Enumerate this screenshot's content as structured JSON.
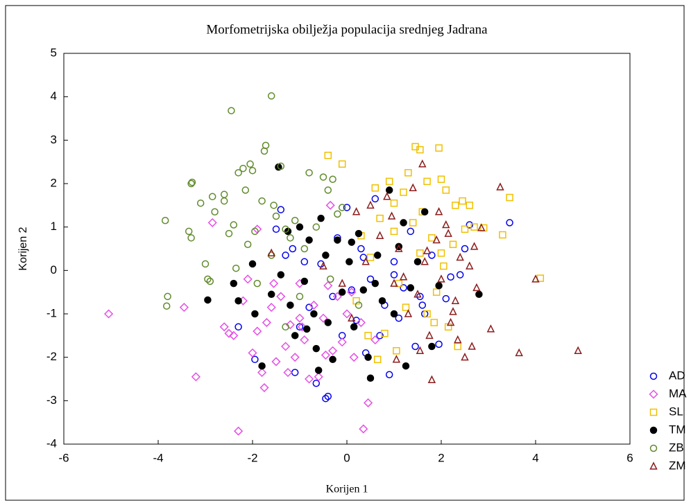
{
  "chart_data": {
    "type": "scatter",
    "title": "Morfometrijska obilježja populacija srednjeg Jadrana",
    "x_label": "Korijen 1",
    "y_label": "Korijen 2",
    "xlim": [
      -6,
      6
    ],
    "xticks": [
      -6,
      -4,
      -2,
      0,
      2,
      4,
      6
    ],
    "ylim": [
      -4,
      5
    ],
    "yticks": [
      -4,
      -3,
      -2,
      -1,
      0,
      1,
      2,
      3,
      4,
      5
    ],
    "grid": false,
    "legend": "right",
    "series": [
      {
        "name": "AD",
        "color": "#0000ee",
        "marker": "circle",
        "x": [
          -2.3,
          -1.95,
          -1.5,
          -1.4,
          -1.3,
          -1.1,
          -1.0,
          -0.9,
          -0.8,
          -0.65,
          -0.55,
          -0.45,
          -0.4,
          -0.3,
          -0.2,
          -0.1,
          0.0,
          0.1,
          0.2,
          0.35,
          0.4,
          0.5,
          0.6,
          0.7,
          0.8,
          0.9,
          1.0,
          1.1,
          1.2,
          1.35,
          1.45,
          1.55,
          1.65,
          1.8,
          1.95,
          2.1,
          2.2,
          2.4,
          2.5,
          2.6,
          3.45,
          -1.15,
          0.3,
          1.0,
          1.6
        ],
        "values": [
          -1.3,
          -2.05,
          0.95,
          1.4,
          0.35,
          -2.35,
          -1.3,
          0.2,
          -0.85,
          -2.6,
          0.15,
          -2.95,
          -2.9,
          -0.6,
          0.75,
          -1.5,
          1.45,
          -0.45,
          -1.15,
          0.3,
          -1.9,
          -0.2,
          1.65,
          -1.5,
          -0.8,
          -2.4,
          0.2,
          -1.1,
          -0.4,
          0.9,
          -1.75,
          -0.6,
          -1.0,
          0.35,
          -1.7,
          -0.65,
          -0.15,
          -0.1,
          0.5,
          1.05,
          1.1,
          0.5,
          0.5,
          -0.1,
          -0.8
        ]
      },
      {
        "name": "MA",
        "color": "#e64ee6",
        "marker": "diamond",
        "x": [
          -5.05,
          -3.45,
          -3.2,
          -2.85,
          -2.3,
          -2.5,
          -2.4,
          -2.0,
          -1.9,
          -1.8,
          -1.7,
          -1.6,
          -1.5,
          -1.4,
          -1.3,
          -1.2,
          -1.1,
          -1.0,
          -0.9,
          -0.8,
          -0.7,
          -0.6,
          -0.5,
          -0.4,
          -0.3,
          -0.2,
          -0.1,
          0.0,
          0.15,
          0.3,
          0.35,
          0.45,
          0.6,
          -2.1,
          -1.9,
          -1.55,
          -1.25,
          -0.95,
          -0.45,
          -1.75,
          -2.6,
          -1.0,
          -2.2,
          0.1,
          -0.35
        ],
        "values": [
          -1.0,
          -0.85,
          -2.45,
          1.1,
          -3.7,
          -1.45,
          -1.5,
          -1.9,
          -1.4,
          -2.35,
          -1.2,
          -0.85,
          -2.1,
          -0.6,
          -1.75,
          -1.25,
          -2.0,
          -0.3,
          -1.6,
          -2.5,
          -0.8,
          -2.45,
          -1.1,
          -0.35,
          -1.85,
          -0.6,
          -1.65,
          -1.0,
          -2.0,
          -1.2,
          -3.65,
          -3.05,
          -1.6,
          -0.2,
          0.95,
          -0.3,
          -2.35,
          -1.3,
          -1.95,
          -2.7,
          -1.3,
          -1.1,
          -0.7,
          -0.5,
          1.5
        ]
      },
      {
        "name": "SL",
        "color": "#f0c000",
        "marker": "square",
        "x": [
          -0.4,
          -0.1,
          0.6,
          0.9,
          1.0,
          1.2,
          1.3,
          1.45,
          1.55,
          1.7,
          1.95,
          2.0,
          2.1,
          2.3,
          2.45,
          2.6,
          2.7,
          2.9,
          3.3,
          3.45,
          4.1,
          0.2,
          0.5,
          0.65,
          0.8,
          1.0,
          1.1,
          1.25,
          1.4,
          1.55,
          1.7,
          1.8,
          1.9,
          2.05,
          2.15,
          2.25,
          2.35,
          1.6,
          0.3,
          0.7,
          2.5,
          1.85,
          0.45,
          1.05,
          2.0
        ],
        "values": [
          2.65,
          2.45,
          1.9,
          2.05,
          1.55,
          1.8,
          2.25,
          2.85,
          2.78,
          2.05,
          2.82,
          2.1,
          1.85,
          1.5,
          1.6,
          1.5,
          1.0,
          0.98,
          0.82,
          1.68,
          -0.18,
          -0.7,
          0.3,
          -2.05,
          -1.45,
          0.9,
          -0.3,
          -0.85,
          1.1,
          0.4,
          -1.0,
          0.75,
          -0.5,
          0.1,
          -1.3,
          0.6,
          -1.75,
          1.35,
          0.8,
          1.2,
          0.95,
          -1.2,
          -1.5,
          -1.85,
          0.4
        ]
      },
      {
        "name": "TM",
        "color": "#000000",
        "marker": "filled-circle",
        "x": [
          -2.95,
          -2.4,
          -2.3,
          -2.0,
          -1.95,
          -1.8,
          -1.6,
          -1.45,
          -1.4,
          -1.25,
          -1.1,
          -1.0,
          -0.9,
          -0.8,
          -0.7,
          -0.65,
          -0.55,
          -0.45,
          -0.4,
          -0.3,
          -0.2,
          -0.1,
          0.05,
          0.15,
          0.25,
          0.35,
          0.45,
          0.5,
          0.65,
          0.75,
          0.9,
          1.0,
          1.1,
          1.25,
          1.35,
          1.5,
          1.65,
          1.8,
          1.95,
          2.8,
          -0.6,
          0.1,
          -1.2,
          0.6,
          1.2,
          -0.85
        ],
        "values": [
          -0.68,
          -0.3,
          -0.7,
          0.15,
          -1.0,
          -2.2,
          -0.55,
          2.38,
          -0.1,
          0.9,
          -1.5,
          1.0,
          -0.25,
          0.7,
          -1.0,
          -1.8,
          1.2,
          0.35,
          -1.2,
          -2.05,
          0.7,
          -0.5,
          0.2,
          -1.3,
          0.85,
          -0.45,
          -2.0,
          -2.48,
          0.35,
          -0.7,
          1.85,
          -1.0,
          0.55,
          -2.2,
          -0.4,
          0.2,
          1.35,
          -1.75,
          -0.35,
          -0.55,
          -2.3,
          0.65,
          -0.8,
          -0.3,
          1.1,
          -1.35
        ]
      },
      {
        "name": "ZB",
        "color": "#5f8a2a",
        "marker": "circle",
        "x": [
          -3.85,
          -3.8,
          -3.82,
          -3.3,
          -3.28,
          -3.35,
          -3.3,
          -3.1,
          -3.0,
          -2.95,
          -2.9,
          -2.85,
          -2.8,
          -2.6,
          -2.45,
          -2.4,
          -2.35,
          -2.3,
          -2.2,
          -2.05,
          -2.0,
          -1.95,
          -1.9,
          -1.8,
          -1.75,
          -1.72,
          -1.6,
          -1.55,
          -1.5,
          -1.4,
          -1.3,
          -1.2,
          -1.1,
          -1.0,
          -0.9,
          -0.8,
          -0.65,
          -0.5,
          -0.4,
          -0.3,
          -0.2,
          -0.1,
          -1.3,
          -2.1,
          -2.5,
          -1.6,
          -0.35,
          0.25,
          -2.6,
          -2.15
        ],
        "values": [
          1.15,
          -0.6,
          -0.82,
          2.0,
          2.03,
          0.9,
          0.75,
          1.55,
          0.15,
          -0.2,
          -0.25,
          1.7,
          1.35,
          1.75,
          3.68,
          1.05,
          0.05,
          2.25,
          2.35,
          2.45,
          2.3,
          0.9,
          -0.3,
          1.6,
          2.75,
          2.88,
          4.02,
          1.5,
          1.25,
          2.4,
          0.95,
          0.75,
          1.15,
          -0.6,
          0.5,
          2.25,
          1.0,
          2.15,
          1.85,
          2.1,
          1.3,
          1.45,
          -1.3,
          0.6,
          0.85,
          0.35,
          -0.2,
          -0.8,
          1.6,
          1.85
        ]
      },
      {
        "name": "ZM",
        "color": "#8b1c1c",
        "marker": "triangle",
        "x": [
          0.2,
          0.5,
          0.7,
          0.85,
          1.0,
          1.1,
          1.3,
          1.4,
          1.5,
          1.6,
          1.65,
          1.75,
          1.8,
          1.9,
          2.0,
          2.1,
          2.2,
          2.3,
          2.35,
          2.4,
          2.5,
          2.6,
          2.7,
          2.75,
          2.85,
          3.05,
          3.25,
          3.65,
          4.0,
          4.9,
          -1.6,
          -0.5,
          -0.1,
          0.4,
          0.95,
          1.2,
          1.55,
          1.95,
          2.25,
          2.65,
          0.1,
          1.05,
          2.15,
          1.7
        ],
        "values": [
          1.35,
          1.5,
          0.8,
          1.7,
          -0.3,
          0.5,
          -1.0,
          1.9,
          -0.55,
          2.45,
          0.2,
          -1.5,
          -2.52,
          0.7,
          -0.2,
          1.05,
          -1.2,
          -0.7,
          -1.6,
          0.3,
          -2.0,
          0.1,
          0.55,
          -0.4,
          0.98,
          -1.35,
          1.92,
          -1.9,
          -0.2,
          -1.85,
          0.4,
          0.1,
          -0.3,
          0.2,
          1.25,
          -0.15,
          -1.85,
          1.35,
          -0.95,
          -1.75,
          -1.1,
          -2.05,
          0.85,
          0.45
        ]
      }
    ]
  }
}
